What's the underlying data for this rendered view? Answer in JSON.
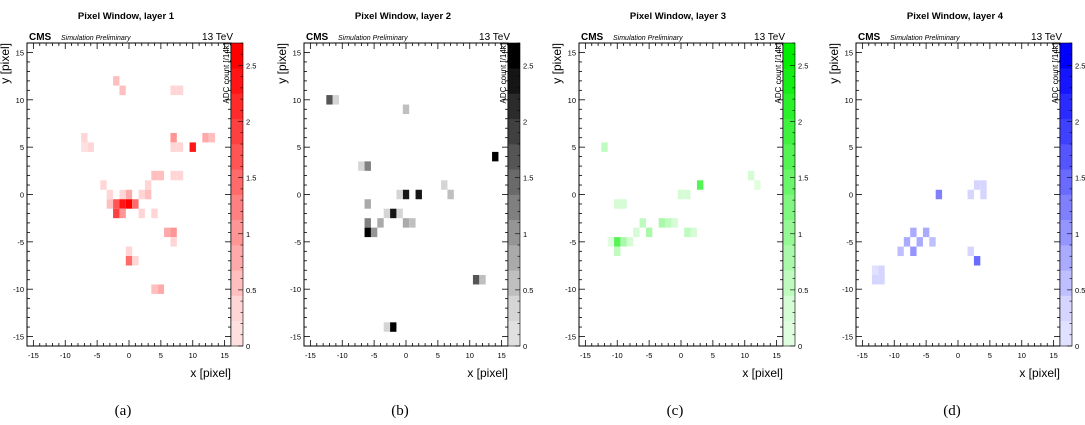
{
  "chart_data": [
    {
      "type": "heatmap",
      "title": "Pixel Window, layer 1",
      "caption": "(a)",
      "experiment": "CMS",
      "subtitle": "Simulation Preliminary",
      "energy": "13 TeV",
      "xlabel": "x [pixel]",
      "ylabel": "y [pixel]",
      "zlabel": "ADC count [/14k]",
      "xlim": [
        -16,
        16
      ],
      "ylim": [
        -16,
        16
      ],
      "zlim": [
        0,
        2.7
      ],
      "x_ticks": [
        "-15",
        "-10",
        "-5",
        "0",
        "5",
        "10",
        "15"
      ],
      "y_ticks": [
        "-15",
        "-10",
        "-5",
        "0",
        "5",
        "10",
        "15"
      ],
      "z_ticks": [
        "0",
        "0.5",
        "1",
        "1.5",
        "2",
        "2.5"
      ],
      "color": "#ff0000",
      "cells": [
        [
          -2,
          12,
          0.6
        ],
        [
          -1,
          11,
          0.5
        ],
        [
          8,
          11,
          0.3
        ],
        [
          7,
          11,
          0.3
        ],
        [
          -7,
          6,
          0.4
        ],
        [
          -6,
          5,
          0.4
        ],
        [
          -7,
          5,
          0.2
        ],
        [
          7,
          6,
          1.0
        ],
        [
          8,
          5,
          0.4
        ],
        [
          10,
          5,
          2.4
        ],
        [
          12,
          6,
          0.7
        ],
        [
          13,
          6,
          0.6
        ],
        [
          7,
          5,
          0.3
        ],
        [
          4,
          2,
          0.6
        ],
        [
          5,
          2,
          0.5
        ],
        [
          7,
          2,
          0.4
        ],
        [
          8,
          2,
          0.3
        ],
        [
          3,
          1,
          0.4
        ],
        [
          -4,
          1,
          0.3
        ],
        [
          -1,
          0,
          0.3
        ],
        [
          0,
          0,
          0.7
        ],
        [
          2,
          0,
          0.4
        ],
        [
          3,
          0,
          0.5
        ],
        [
          -3,
          0,
          0.3
        ],
        [
          -2,
          -1,
          1.8
        ],
        [
          -1,
          -1,
          2.4
        ],
        [
          0,
          -1,
          2.5
        ],
        [
          1,
          -1,
          1.5
        ],
        [
          -2,
          -2,
          2.0
        ],
        [
          -1,
          -2,
          1.0
        ],
        [
          -3,
          -1,
          0.6
        ],
        [
          2,
          -2,
          0.4
        ],
        [
          4,
          -2,
          0.3
        ],
        [
          7,
          -4,
          1.0
        ],
        [
          6,
          -4,
          0.8
        ],
        [
          7,
          -5,
          0.4
        ],
        [
          0,
          -6,
          0.4
        ],
        [
          0,
          -7,
          1.5
        ],
        [
          1,
          -7,
          0.3
        ],
        [
          4,
          -10,
          0.6
        ],
        [
          5,
          -10,
          0.8
        ]
      ]
    },
    {
      "type": "heatmap",
      "title": "Pixel Window, layer 2",
      "caption": "(b)",
      "experiment": "CMS",
      "subtitle": "Simulation Preliminary",
      "energy": "13 TeV",
      "xlabel": "x [pixel]",
      "ylabel": "y [pixel]",
      "zlabel": "ADC count [/14k]",
      "xlim": [
        -16,
        16
      ],
      "ylim": [
        -16,
        16
      ],
      "zlim": [
        0,
        2.7
      ],
      "x_ticks": [
        "-15",
        "-10",
        "-5",
        "0",
        "5",
        "10",
        "15"
      ],
      "y_ticks": [
        "-15",
        "-10",
        "-5",
        "0",
        "5",
        "10",
        "15"
      ],
      "z_ticks": [
        "0",
        "0.5",
        "1",
        "1.5",
        "2",
        "2.5"
      ],
      "color": "#000000",
      "cells": [
        [
          -12,
          10,
          1.8
        ],
        [
          -11,
          10,
          0.4
        ],
        [
          0,
          9,
          0.6
        ],
        [
          14,
          4,
          2.5
        ],
        [
          -7,
          3,
          0.4
        ],
        [
          -6,
          3,
          1.3
        ],
        [
          0,
          0,
          2.4
        ],
        [
          2,
          0,
          2.4
        ],
        [
          -1,
          0,
          0.4
        ],
        [
          6,
          1,
          0.4
        ],
        [
          7,
          0,
          0.6
        ],
        [
          -6,
          -1,
          0.8
        ],
        [
          -2,
          -2,
          2.3
        ],
        [
          -1,
          -2,
          0.4
        ],
        [
          -6,
          -3,
          1.2
        ],
        [
          -4,
          -3,
          0.7
        ],
        [
          -3,
          -2,
          0.4
        ],
        [
          0,
          -3,
          0.9
        ],
        [
          1,
          -3,
          0.6
        ],
        [
          -6,
          -4,
          2.5
        ],
        [
          -5,
          -4,
          1.1
        ],
        [
          11,
          -9,
          1.7
        ],
        [
          12,
          -9,
          0.5
        ],
        [
          -2,
          -14,
          2.5
        ],
        [
          -3,
          -14,
          0.4
        ]
      ]
    },
    {
      "type": "heatmap",
      "title": "Pixel Window, layer 3",
      "caption": "(c)",
      "experiment": "CMS",
      "subtitle": "Simulation Preliminary",
      "energy": "13 TeV",
      "xlabel": "x [pixel]",
      "ylabel": "y [pixel]",
      "zlabel": "ADC count [/14k]",
      "xlim": [
        -16,
        16
      ],
      "ylim": [
        -16,
        16
      ],
      "zlim": [
        0,
        2.7
      ],
      "x_ticks": [
        "-15",
        "-10",
        "-5",
        "0",
        "5",
        "10",
        "15"
      ],
      "y_ticks": [
        "-15",
        "-10",
        "-5",
        "0",
        "5",
        "10",
        "15"
      ],
      "z_ticks": [
        "0",
        "0.5",
        "1",
        "1.5",
        "2",
        "2.5"
      ],
      "color": "#00ee00",
      "cells": [
        [
          -12,
          5,
          0.6
        ],
        [
          11,
          2,
          0.3
        ],
        [
          12,
          1,
          0.2
        ],
        [
          3,
          1,
          1.6
        ],
        [
          0,
          0,
          0.4
        ],
        [
          1,
          0,
          0.3
        ],
        [
          -10,
          -1,
          0.4
        ],
        [
          -9,
          -1,
          0.3
        ],
        [
          -6,
          -3,
          0.5
        ],
        [
          -3,
          -3,
          0.7
        ],
        [
          -2,
          -3,
          0.6
        ],
        [
          -1,
          -3,
          0.4
        ],
        [
          -5,
          -4,
          0.9
        ],
        [
          1,
          -4,
          0.5
        ],
        [
          2,
          -4,
          0.4
        ],
        [
          -7,
          -4,
          0.3
        ],
        [
          -10,
          -5,
          1.8
        ],
        [
          -9,
          -5,
          0.8
        ],
        [
          -8,
          -5,
          0.4
        ],
        [
          -11,
          -5,
          0.2
        ],
        [
          -10,
          -6,
          0.5
        ]
      ]
    },
    {
      "type": "heatmap",
      "title": "Pixel Window, layer 4",
      "caption": "(d)",
      "experiment": "CMS",
      "subtitle": "Simulation Preliminary",
      "energy": "13 TeV",
      "xlabel": "x [pixel]",
      "ylabel": "y [pixel]",
      "zlabel": "ADC count [/14k]",
      "xlim": [
        -16,
        16
      ],
      "ylim": [
        -16,
        16
      ],
      "zlim": [
        0,
        2.7
      ],
      "x_ticks": [
        "-15",
        "-10",
        "-5",
        "0",
        "5",
        "10",
        "15"
      ],
      "y_ticks": [
        "-15",
        "-10",
        "-5",
        "0",
        "5",
        "10",
        "15"
      ],
      "z_ticks": [
        "0",
        "0.5",
        "1",
        "1.5",
        "2",
        "2.5"
      ],
      "color": "#0000ff",
      "cells": [
        [
          -3,
          0,
          1.3
        ],
        [
          3,
          1,
          0.3
        ],
        [
          4,
          1,
          0.3
        ],
        [
          2,
          0,
          0.3
        ],
        [
          4,
          0,
          0.3
        ],
        [
          -7,
          -4,
          0.8
        ],
        [
          -5,
          -4,
          0.8
        ],
        [
          -8,
          -5,
          0.9
        ],
        [
          -6,
          -5,
          0.9
        ],
        [
          -4,
          -5,
          0.6
        ],
        [
          -9,
          -6,
          0.5
        ],
        [
          -7,
          -6,
          1.1
        ],
        [
          2,
          -6,
          0.4
        ],
        [
          3,
          -7,
          1.4
        ],
        [
          -13,
          -8,
          0.2
        ],
        [
          -12,
          -8,
          0.4
        ],
        [
          -13,
          -9,
          0.4
        ],
        [
          -12,
          -9,
          0.4
        ]
      ]
    }
  ]
}
